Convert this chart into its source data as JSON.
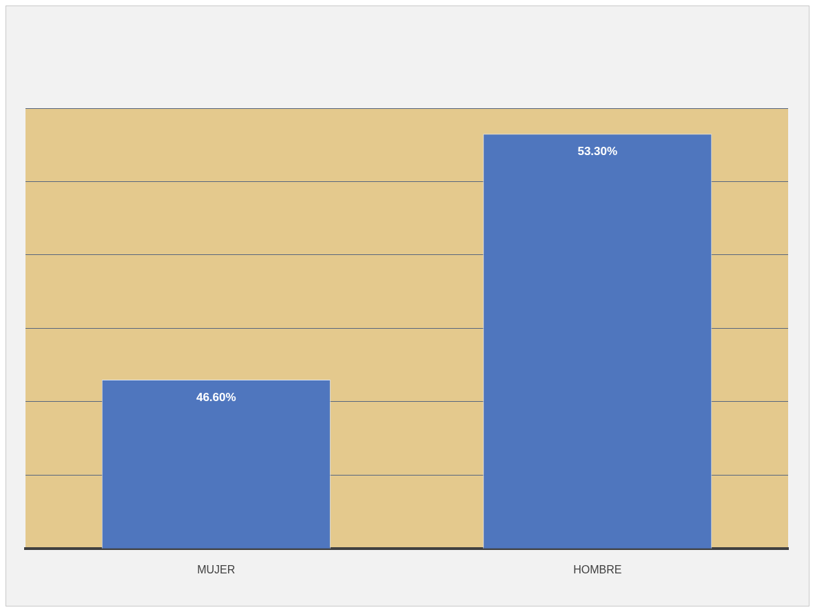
{
  "chart_data": {
    "type": "bar",
    "categories": [
      "MUJER",
      "HOMBRE"
    ],
    "values": [
      46.6,
      53.3
    ],
    "color": "#4f76be",
    "value_labels": [
      "46.60%",
      "53.30%"
    ],
    "ylim": [
      42,
      54
    ],
    "yticks": [
      {
        "value": 42,
        "label": null
      },
      {
        "value": 44,
        "label": null
      },
      {
        "value": 46,
        "label": null
      },
      {
        "value": 48,
        "label": null
      },
      {
        "value": 50,
        "label": null
      },
      {
        "value": 52,
        "label": null
      },
      {
        "value": 54,
        "label": null
      }
    ],
    "tick_labels": "x",
    "grid": "y",
    "legend": false
  }
}
